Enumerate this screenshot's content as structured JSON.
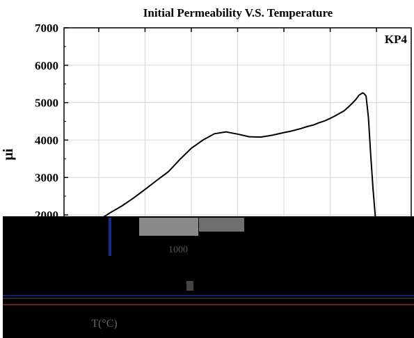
{
  "chart_data": {
    "type": "line",
    "title": "Initial Permeability V.S. Temperature",
    "ylabel": "μi",
    "xlabel": "T(°C)",
    "annotation": "KP4",
    "ylim": [
      2000,
      7000
    ],
    "xlim": [
      -70,
      230
    ],
    "y_ticks": [
      "2000",
      "3000",
      "4000",
      "5000",
      "6000",
      "7000"
    ],
    "grid": true,
    "series": [
      {
        "x": [
          -40,
          -35,
          -30,
          -20,
          -10,
          0,
          10,
          20,
          25,
          30,
          40,
          50,
          60,
          70,
          80,
          90,
          100,
          110,
          120,
          125,
          130,
          135,
          140,
          145,
          147,
          150,
          155,
          160,
          165,
          172,
          177,
          182,
          185,
          188
        ],
        "values": [
          1900,
          1960,
          2060,
          2240,
          2450,
          2680,
          2920,
          3150,
          3310,
          3480,
          3780,
          4000,
          4170,
          4220,
          4160,
          4090,
          4080,
          4130,
          4200,
          4230,
          4270,
          4310,
          4360,
          4400,
          4420,
          4460,
          4510,
          4580,
          4660,
          4780,
          4920,
          5080,
          5200,
          5260
        ]
      }
    ],
    "tail": {
      "x": [
        188,
        189,
        191,
        193,
        195,
        197,
        199
      ],
      "values": [
        5260,
        5250,
        5180,
        4600,
        3600,
        2700,
        1950
      ]
    }
  }
}
